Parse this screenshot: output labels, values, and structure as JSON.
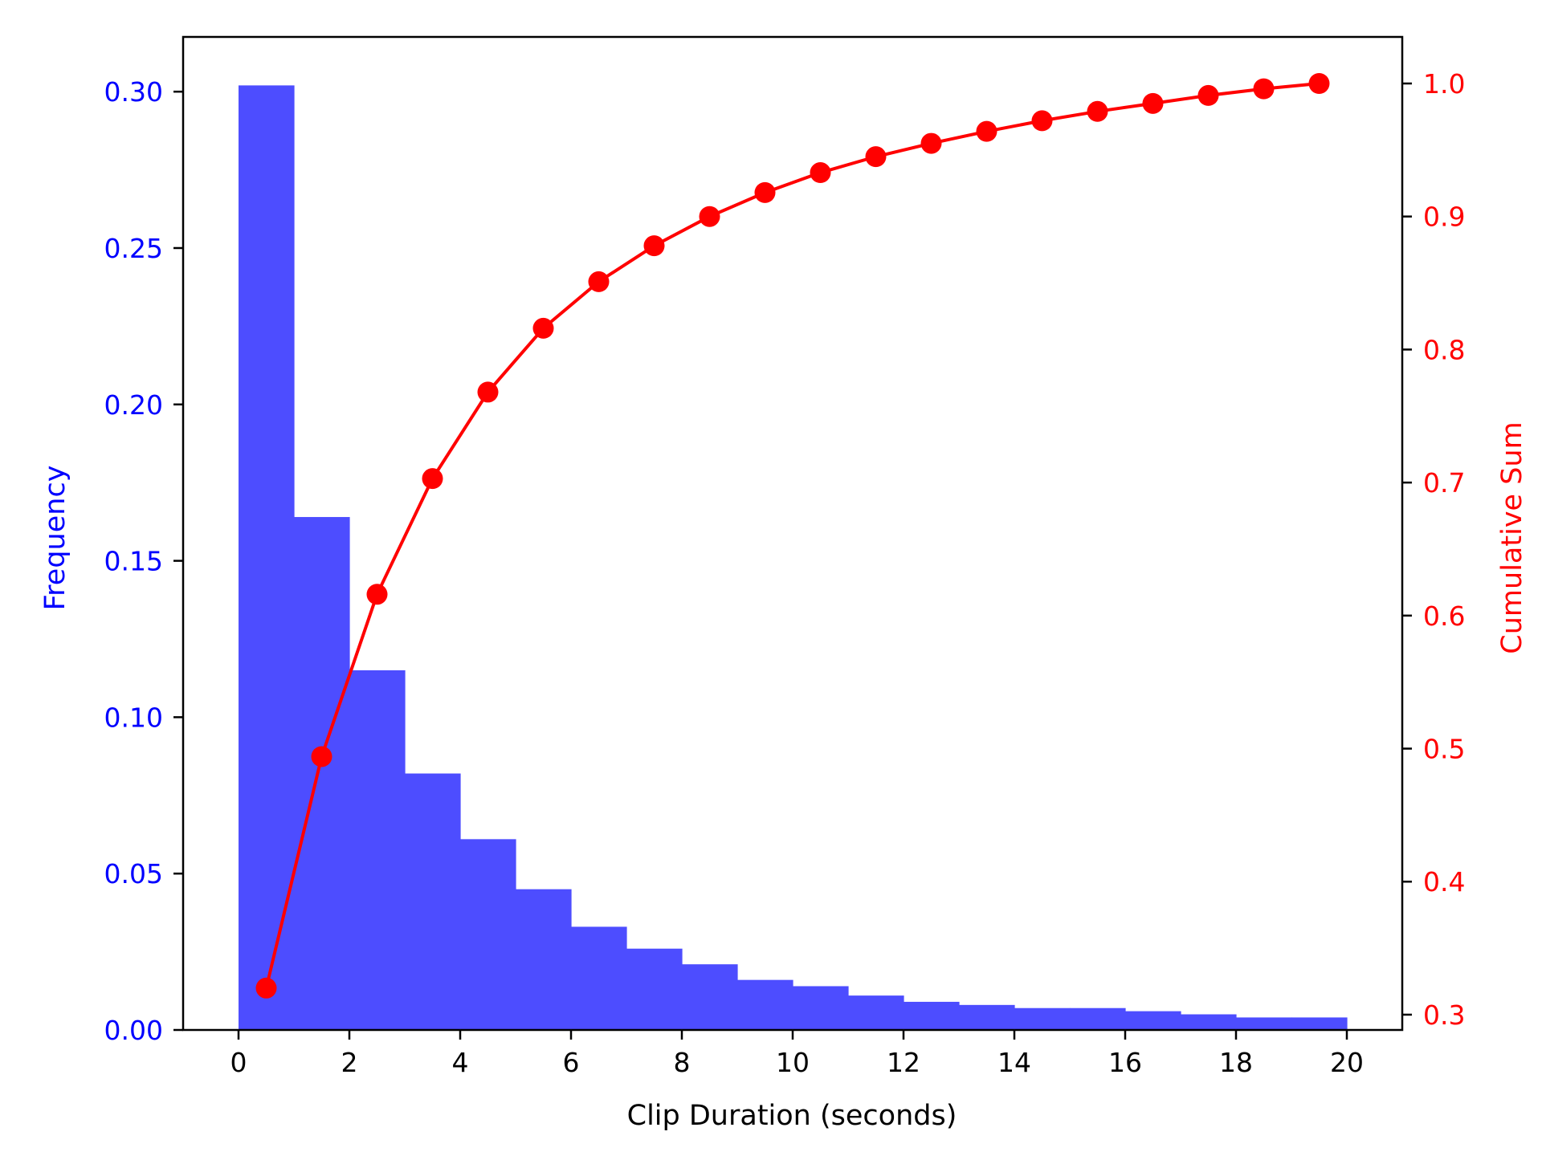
{
  "chart_data": {
    "type": "bar",
    "xlabel": "Clip Duration (seconds)",
    "ylabel_left": "Frequency",
    "ylabel_right": "Cumulative Sum",
    "xlim": [
      -1,
      21
    ],
    "ylim_left": [
      0,
      0.3175
    ],
    "ylim_right": [
      0.2885,
      1.035
    ],
    "x_ticks": [
      0,
      2,
      4,
      6,
      8,
      10,
      12,
      14,
      16,
      18,
      20
    ],
    "y_left_ticks": [
      0.0,
      0.05,
      0.1,
      0.15,
      0.2,
      0.25,
      0.3
    ],
    "y_right_ticks": [
      0.3,
      0.4,
      0.5,
      0.6,
      0.7,
      0.8,
      0.9,
      1.0
    ],
    "bin_edges": [
      0,
      1,
      2,
      3,
      4,
      5,
      6,
      7,
      8,
      9,
      10,
      11,
      12,
      13,
      14,
      15,
      16,
      17,
      18,
      19,
      20
    ],
    "series": [
      {
        "name": "Frequency",
        "kind": "histogram",
        "axis": "left",
        "values": [
          0.302,
          0.164,
          0.115,
          0.082,
          0.061,
          0.045,
          0.033,
          0.026,
          0.021,
          0.016,
          0.014,
          0.011,
          0.009,
          0.008,
          0.007,
          0.007,
          0.006,
          0.005,
          0.004,
          0.004
        ]
      },
      {
        "name": "Cumulative Sum",
        "kind": "line",
        "axis": "right",
        "x": [
          0.5,
          1.5,
          2.5,
          3.5,
          4.5,
          5.5,
          6.5,
          7.5,
          8.5,
          9.5,
          10.5,
          11.5,
          12.5,
          13.5,
          14.5,
          15.5,
          16.5,
          17.5,
          18.5,
          19.5
        ],
        "values": [
          0.32,
          0.494,
          0.616,
          0.703,
          0.768,
          0.816,
          0.851,
          0.878,
          0.9,
          0.918,
          0.933,
          0.945,
          0.955,
          0.964,
          0.972,
          0.979,
          0.985,
          0.991,
          0.996,
          1.0
        ]
      }
    ],
    "grid": false,
    "legend": "none",
    "colors": {
      "bars": "#4d4dff",
      "line": "#ff0000",
      "left_axis": "#0000ff",
      "right_axis": "#ff0000",
      "frame": "#000000"
    }
  }
}
